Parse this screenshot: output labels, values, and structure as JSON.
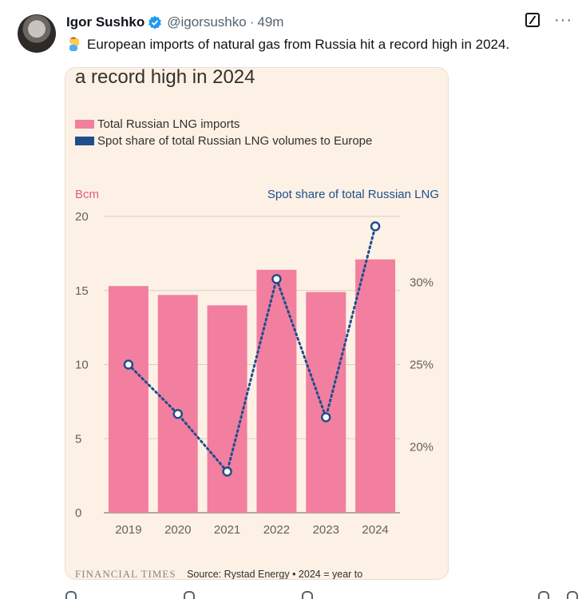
{
  "author": {
    "name": "Igor Sushko",
    "handle": "@igorsushko",
    "separator": "·",
    "time": "49m"
  },
  "tweet": {
    "emoji": "person-facepalming",
    "text": "European imports of natural gas from Russia hit a record high in 2024."
  },
  "colors": {
    "card_bg": "#fdf1e5",
    "bar": "#f27f9f",
    "line": "#1f4e8c",
    "grid": "#d9cfc5",
    "verified": "#1d9bf0"
  },
  "chart_data": {
    "type": "bar",
    "title": "a record high in 2024",
    "legend": [
      "Total Russian LNG imports",
      "Spot share of total Russian LNG volumes to Europe"
    ],
    "left_axis_label": "Bcm",
    "right_axis_label": "Spot share of total Russian LNG",
    "categories": [
      "2019",
      "2020",
      "2021",
      "2022",
      "2023",
      "2024"
    ],
    "left_ticks": [
      "0",
      "5",
      "10",
      "15",
      "20"
    ],
    "right_ticks": [
      "20%",
      "25%",
      "30%"
    ],
    "ylim": [
      0,
      20
    ],
    "y2lim": [
      16,
      34
    ],
    "series": [
      {
        "name": "Total Russian LNG imports",
        "type": "bar",
        "axis": "left",
        "values": [
          15.3,
          14.7,
          14.0,
          16.4,
          14.9,
          17.1
        ]
      },
      {
        "name": "Spot share of total Russian LNG volumes to Europe",
        "type": "line",
        "axis": "right",
        "values": [
          25.0,
          22.0,
          18.5,
          30.2,
          21.8,
          33.4
        ]
      }
    ],
    "source": "Source: Rystad Energy • 2024 = year to",
    "publisher_logo": "FINANCIAL TIMES"
  },
  "action_icons": [
    "reply-icon",
    "repost-icon",
    "like-icon",
    "bookmark-icon",
    "share-icon"
  ]
}
